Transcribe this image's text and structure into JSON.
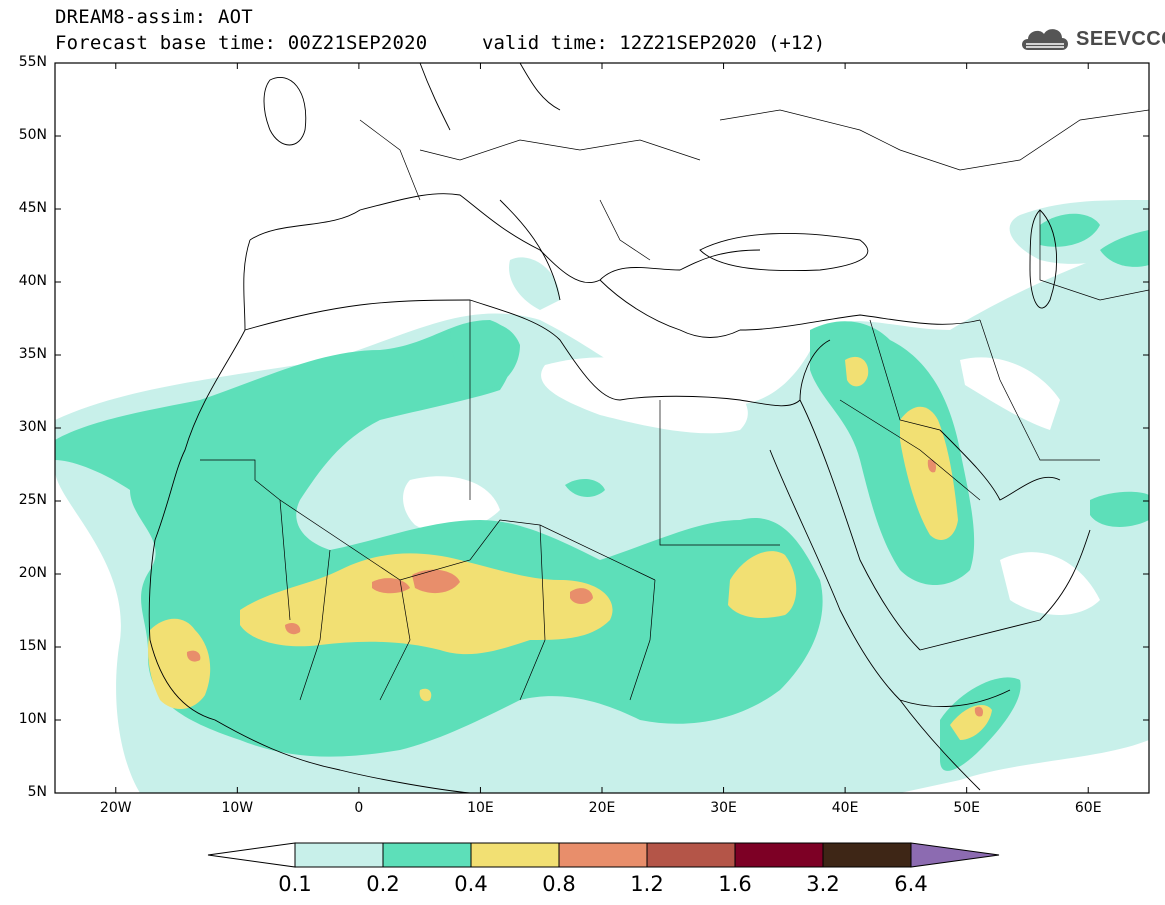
{
  "title": {
    "line1": "DREAM8-assim: AOT",
    "line2": "Forecast base time: 00Z21SEP2020",
    "valid": "valid time: 12Z21SEP2020 (+12)"
  },
  "logo": {
    "text": "SEEVCCC",
    "icon": "cloud-icon"
  },
  "map": {
    "lon_range": [
      -25,
      65
    ],
    "lat_range": [
      5,
      55
    ],
    "lat_labels": [
      "55N",
      "50N",
      "45N",
      "40N",
      "35N",
      "30N",
      "25N",
      "20N",
      "15N",
      "10N",
      "5N"
    ],
    "lon_labels": [
      "20W",
      "10W",
      "0",
      "10E",
      "20E",
      "30E",
      "40E",
      "50E",
      "60E"
    ]
  },
  "colorbar": {
    "labels": [
      "0.1",
      "0.2",
      "0.4",
      "0.8",
      "1.2",
      "1.6",
      "3.2",
      "6.4"
    ],
    "colors": [
      "#c8f0ea",
      "#5ddfb9",
      "#f2e073",
      "#e88e6b",
      "#b45548",
      "#7d0025",
      "#3e2616",
      "#8c6bb1"
    ]
  }
}
